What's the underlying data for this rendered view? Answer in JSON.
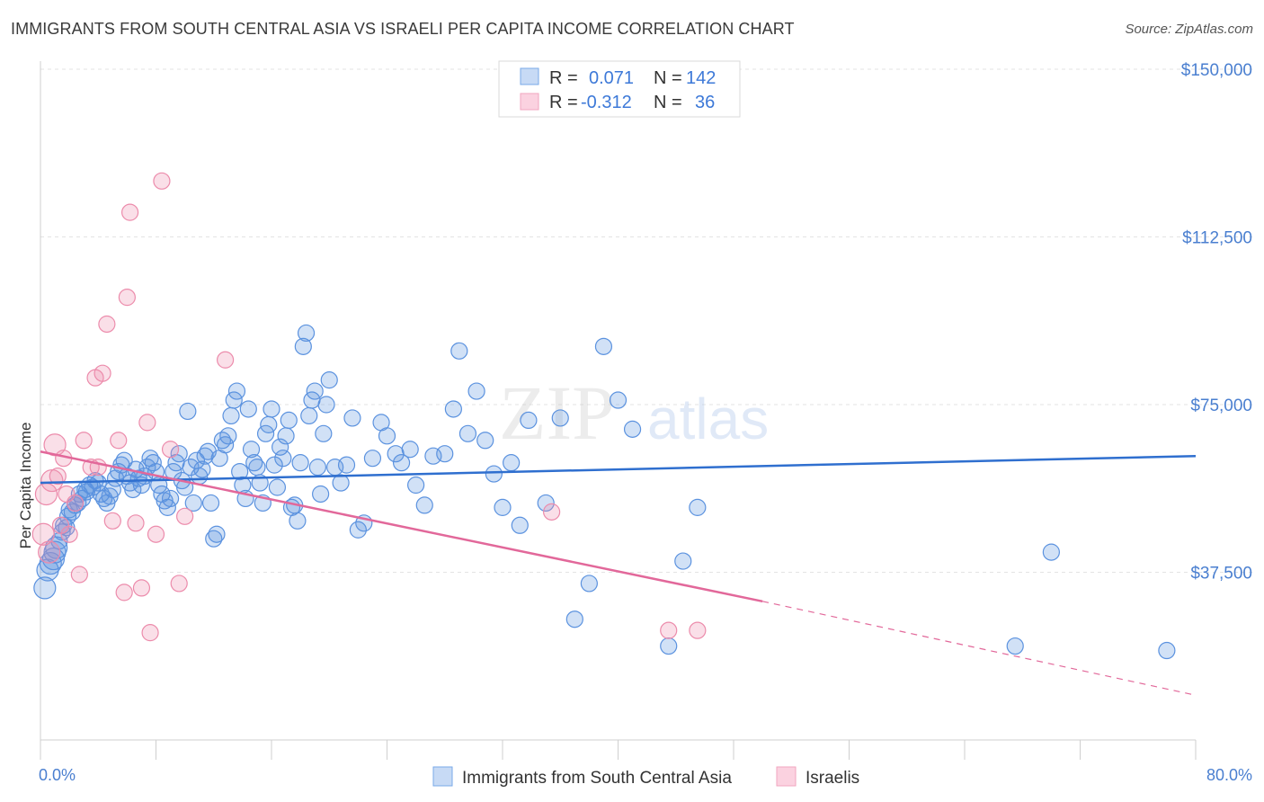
{
  "title": "IMMIGRANTS FROM SOUTH CENTRAL ASIA VS ISRAELI PER CAPITA INCOME CORRELATION CHART",
  "source": "Source: ZipAtlas.com",
  "watermark": {
    "zip": "ZIP",
    "atlas": "atlas"
  },
  "legend_box": {
    "rows": [
      {
        "r_label": "R =",
        "r_value": "0.071",
        "n_label": "N =",
        "n_value": "142",
        "color": "#7aaae8"
      },
      {
        "r_label": "R =",
        "r_value": "-0.312",
        "n_label": "N =",
        "n_value": "36",
        "color": "#f2a6bf"
      }
    ]
  },
  "bottom_legend": [
    {
      "label": "Immigrants from South Central Asia",
      "color": "#7aaae8"
    },
    {
      "label": "Israelis",
      "color": "#f2a6bf"
    }
  ],
  "colors": {
    "blue": "#5b92df",
    "pink": "#ec8bab",
    "blue_line": "#2f6fcf",
    "pink_line": "#e2689a",
    "grid": "#e3e3e3"
  },
  "chart_data": {
    "type": "scatter",
    "title": "IMMIGRANTS FROM SOUTH CENTRAL ASIA VS ISRAELI PER CAPITA INCOME CORRELATION CHART",
    "xlabel": "",
    "ylabel": "Per Capita Income",
    "xlim": [
      0,
      80
    ],
    "ylim": [
      0,
      155000
    ],
    "x_tick_labels": [
      "0.0%",
      "80.0%"
    ],
    "y_ticks": [
      37500,
      75000,
      112500,
      150000
    ],
    "y_tick_labels": [
      "$37,500",
      "$75,000",
      "$112,500",
      "$150,000"
    ],
    "grid": true,
    "series": [
      {
        "name": "Immigrants from South Central Asia",
        "points": [
          [
            0.3,
            34000
          ],
          [
            0.5,
            38000
          ],
          [
            0.7,
            39500
          ],
          [
            0.9,
            40500
          ],
          [
            1.0,
            42000
          ],
          [
            1.1,
            43000
          ],
          [
            1.3,
            44500
          ],
          [
            1.5,
            46500
          ],
          [
            1.6,
            48000
          ],
          [
            1.8,
            47500
          ],
          [
            1.9,
            50000
          ],
          [
            2.0,
            51500
          ],
          [
            2.2,
            51000
          ],
          [
            2.4,
            52500
          ],
          [
            2.6,
            53000
          ],
          [
            2.7,
            55000
          ],
          [
            2.9,
            54000
          ],
          [
            3.1,
            56000
          ],
          [
            3.2,
            55500
          ],
          [
            3.4,
            57000
          ],
          [
            3.6,
            56500
          ],
          [
            3.8,
            58000
          ],
          [
            4.0,
            57500
          ],
          [
            4.2,
            55000
          ],
          [
            4.4,
            54000
          ],
          [
            4.6,
            53000
          ],
          [
            4.8,
            54500
          ],
          [
            5.0,
            56000
          ],
          [
            5.2,
            58500
          ],
          [
            5.4,
            60000
          ],
          [
            5.6,
            61500
          ],
          [
            5.8,
            62500
          ],
          [
            6.0,
            59000
          ],
          [
            6.2,
            57500
          ],
          [
            6.4,
            56000
          ],
          [
            6.6,
            60500
          ],
          [
            6.8,
            58500
          ],
          [
            7.0,
            57000
          ],
          [
            7.2,
            59000
          ],
          [
            7.4,
            61000
          ],
          [
            7.6,
            63000
          ],
          [
            7.8,
            62000
          ],
          [
            8.0,
            60000
          ],
          [
            8.2,
            57000
          ],
          [
            8.4,
            55000
          ],
          [
            8.6,
            53500
          ],
          [
            8.8,
            52000
          ],
          [
            9.0,
            54000
          ],
          [
            9.2,
            60000
          ],
          [
            9.4,
            62000
          ],
          [
            9.6,
            64000
          ],
          [
            9.8,
            58000
          ],
          [
            10.0,
            56500
          ],
          [
            10.2,
            73500
          ],
          [
            10.4,
            61000
          ],
          [
            10.6,
            53000
          ],
          [
            10.8,
            62500
          ],
          [
            11.0,
            59000
          ],
          [
            11.2,
            60500
          ],
          [
            11.4,
            63500
          ],
          [
            11.6,
            64500
          ],
          [
            11.8,
            53000
          ],
          [
            12.0,
            45000
          ],
          [
            12.2,
            46000
          ],
          [
            12.4,
            63000
          ],
          [
            12.6,
            67000
          ],
          [
            12.8,
            66000
          ],
          [
            13.0,
            68000
          ],
          [
            13.2,
            72500
          ],
          [
            13.4,
            76000
          ],
          [
            13.6,
            78000
          ],
          [
            13.8,
            60000
          ],
          [
            14.0,
            57000
          ],
          [
            14.2,
            54000
          ],
          [
            14.4,
            74000
          ],
          [
            14.6,
            65000
          ],
          [
            14.8,
            62000
          ],
          [
            15.0,
            61000
          ],
          [
            15.2,
            57500
          ],
          [
            15.4,
            53000
          ],
          [
            15.6,
            68500
          ],
          [
            15.8,
            70500
          ],
          [
            16.0,
            74000
          ],
          [
            16.2,
            61500
          ],
          [
            16.4,
            56500
          ],
          [
            16.6,
            65500
          ],
          [
            16.8,
            63000
          ],
          [
            17.0,
            68000
          ],
          [
            17.2,
            71500
          ],
          [
            17.4,
            52000
          ],
          [
            17.6,
            52500
          ],
          [
            17.8,
            49000
          ],
          [
            18.0,
            62000
          ],
          [
            18.2,
            88000
          ],
          [
            18.4,
            91000
          ],
          [
            18.6,
            72500
          ],
          [
            18.8,
            76000
          ],
          [
            19.0,
            78000
          ],
          [
            19.2,
            61000
          ],
          [
            19.4,
            55000
          ],
          [
            19.6,
            68500
          ],
          [
            19.8,
            75000
          ],
          [
            20.0,
            80500
          ],
          [
            20.4,
            61000
          ],
          [
            20.8,
            57500
          ],
          [
            21.2,
            61500
          ],
          [
            21.6,
            72000
          ],
          [
            22.0,
            47000
          ],
          [
            22.4,
            48500
          ],
          [
            23.0,
            63000
          ],
          [
            23.6,
            71000
          ],
          [
            24.0,
            68000
          ],
          [
            24.6,
            64000
          ],
          [
            25.0,
            62000
          ],
          [
            25.6,
            65000
          ],
          [
            26.0,
            57000
          ],
          [
            26.6,
            52500
          ],
          [
            27.2,
            63500
          ],
          [
            28.0,
            64000
          ],
          [
            28.6,
            74000
          ],
          [
            29.0,
            87000
          ],
          [
            29.6,
            68500
          ],
          [
            30.2,
            78000
          ],
          [
            30.8,
            67000
          ],
          [
            31.4,
            59500
          ],
          [
            32.0,
            52000
          ],
          [
            32.6,
            62000
          ],
          [
            33.2,
            48000
          ],
          [
            33.8,
            71500
          ],
          [
            35.0,
            53000
          ],
          [
            36.0,
            72000
          ],
          [
            37.0,
            27000
          ],
          [
            38.0,
            35000
          ],
          [
            39.0,
            88000
          ],
          [
            40.0,
            76000
          ],
          [
            41.0,
            69500
          ],
          [
            43.5,
            21000
          ],
          [
            44.5,
            40000
          ],
          [
            45.5,
            52000
          ],
          [
            67.5,
            21000
          ],
          [
            70.0,
            42000
          ],
          [
            78.0,
            20000
          ]
        ]
      },
      {
        "name": "Israelis",
        "points": [
          [
            0.2,
            46000
          ],
          [
            0.4,
            55000
          ],
          [
            0.6,
            42000
          ],
          [
            0.8,
            58000
          ],
          [
            1.0,
            66000
          ],
          [
            1.2,
            59000
          ],
          [
            1.4,
            48000
          ],
          [
            1.6,
            63000
          ],
          [
            1.8,
            55000
          ],
          [
            2.0,
            46000
          ],
          [
            2.4,
            53000
          ],
          [
            2.7,
            37000
          ],
          [
            3.0,
            67000
          ],
          [
            3.5,
            61000
          ],
          [
            3.8,
            81000
          ],
          [
            4.0,
            61000
          ],
          [
            4.3,
            82000
          ],
          [
            4.6,
            93000
          ],
          [
            5.0,
            49000
          ],
          [
            5.4,
            67000
          ],
          [
            5.8,
            33000
          ],
          [
            6.0,
            99000
          ],
          [
            6.2,
            118000
          ],
          [
            6.6,
            48500
          ],
          [
            7.0,
            34000
          ],
          [
            7.4,
            71000
          ],
          [
            7.6,
            24000
          ],
          [
            8.0,
            46000
          ],
          [
            8.4,
            125000
          ],
          [
            9.0,
            65000
          ],
          [
            9.6,
            35000
          ],
          [
            10.0,
            50000
          ],
          [
            12.8,
            85000
          ],
          [
            35.4,
            51000
          ],
          [
            43.5,
            24500
          ],
          [
            45.5,
            24500
          ]
        ]
      }
    ],
    "trendlines": [
      {
        "series": "Immigrants from South Central Asia",
        "x": [
          0,
          80
        ],
        "y": [
          57500,
          63500
        ]
      },
      {
        "series": "Israelis",
        "x": [
          0,
          50
        ],
        "y": [
          64500,
          31000
        ],
        "dashed_extension_to": [
          80,
          10000
        ]
      }
    ]
  }
}
